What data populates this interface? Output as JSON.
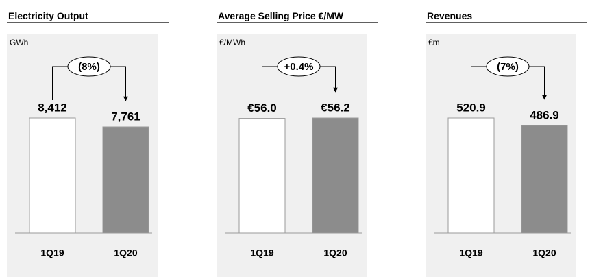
{
  "chart_data": [
    {
      "type": "bar",
      "title": "Electricity Output",
      "y_label": "GWh",
      "annotation": "(8%)",
      "categories": [
        "1Q19",
        "1Q20"
      ],
      "values": [
        8412,
        7761
      ],
      "value_labels": [
        "8,412",
        "7,761"
      ],
      "colors": [
        "#ffffff",
        "#8c8c8c"
      ]
    },
    {
      "type": "bar",
      "title": "Average Selling Price €/MW",
      "y_label": "€/MWh",
      "annotation": "+0.4%",
      "categories": [
        "1Q19",
        "1Q20"
      ],
      "values": [
        56.0,
        56.2
      ],
      "value_labels": [
        "€56.0",
        "€56.2"
      ],
      "colors": [
        "#ffffff",
        "#8c8c8c"
      ]
    },
    {
      "type": "bar",
      "title": "Revenues",
      "y_label": "€m",
      "annotation": "(7%)",
      "categories": [
        "1Q19",
        "1Q20"
      ],
      "values": [
        520.9,
        486.9
      ],
      "colors": [
        "#ffffff",
        "#8c8c8c"
      ]
    }
  ]
}
